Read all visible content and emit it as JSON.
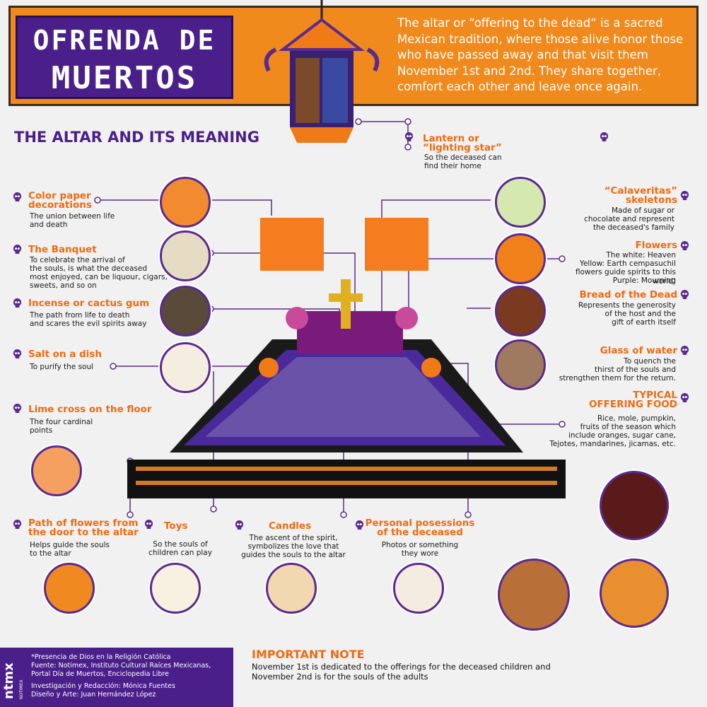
{
  "header": {
    "title_line1": "OFRENDA DE",
    "title_line2": "MUERTOS",
    "intro": "The altar or “offering to the dead“ is a sacred Mexican tradition, where those alive honor those who have passed away and that visit them November 1st and 2nd. They share together, comfort each other and leave once again."
  },
  "section_title": "THE ALTAR AND ITS MEANING",
  "items": {
    "lantern": {
      "title": "Lantern or “lighting star”",
      "title_line1": "Lantern or",
      "title_line2": "“lighting star”",
      "desc_line1": "So the deceased can",
      "desc_line2": "find their home"
    },
    "paper": {
      "title_line1": "Color paper",
      "title_line2": "decorations",
      "desc_line1": "The union between life",
      "desc_line2": "and death"
    },
    "banquet": {
      "title": "The Banquet",
      "desc_line1": "To celebrate the arrival of",
      "desc_line2": "the souls, is what the deceased",
      "desc_line3": "most enjoyed, can be liquour, cigars,",
      "desc_line4": "sweets, and so on"
    },
    "incense": {
      "title": "Incense or cactus gum",
      "desc_line1": "The path from life to death",
      "desc_line2": "and scares the evil spirits away"
    },
    "salt": {
      "title": "Salt on a dish",
      "desc": "To purify the soul"
    },
    "lime": {
      "title": "Lime cross on the floor",
      "desc_line1": "The four cardinal",
      "desc_line2": "points"
    },
    "path": {
      "title_line1": "Path of flowers from",
      "title_line2": "the door to the altar",
      "desc_line1": "Helps guide the souls",
      "desc_line2": "to the altar"
    },
    "toys": {
      "title": "Toys",
      "desc_line1": "So the souls of",
      "desc_line2": "children can play"
    },
    "candles": {
      "title": "Candles",
      "desc_line1": "The ascent of the spirit,",
      "desc_line2": "symbolizes the love that",
      "desc_line3": "guides the souls to the altar"
    },
    "possessions": {
      "title_line1": "Personal posessions",
      "title_line2": "of the deceased",
      "desc_line1": "Photos or something",
      "desc_line2": "they wore"
    },
    "calaveritas": {
      "title_line1": "“Calaveritas”",
      "title_line2": "skeletons",
      "desc_line1": "Made of sugar or",
      "desc_line2": "chocolate and represent",
      "desc_line3": "the deceased's family"
    },
    "flowers": {
      "title": "Flowers",
      "desc_line1": "The white: Heaven",
      "desc_line2": "Yellow: Earth cempasuchil",
      "desc_line3": "flowers guide spirits to this world)",
      "desc_line4": "Purple: Mourning"
    },
    "bread": {
      "title": "Bread of the Dead",
      "desc_line1": "Represents the generosity",
      "desc_line2": "of the host and the",
      "desc_line3": "gift of earth itself"
    },
    "water": {
      "title": "Glass of water",
      "desc_line1": "To quench the",
      "desc_line2": "thirst of the souls and",
      "desc_line3": "strengthen them for the return."
    },
    "food": {
      "title_line1": "TYPICAL",
      "title_line2": "OFFERING FOOD",
      "desc_line1": "Rice, mole, pumpkin,",
      "desc_line2": "fruits of the season which",
      "desc_line3": "include oranges, sugar cane,",
      "desc_line4": "Tejotes, mandarines, jicamas, etc."
    }
  },
  "note": {
    "title": "IMPORTANT NOTE",
    "line1": "November 1st is dedicated to the offerings for the deceased children and",
    "line2": "November 2nd is for the souls of the adults"
  },
  "credits": {
    "logo": "ntmx",
    "logo_sub": "NOTIMEX",
    "line1": "*Presencia de Dios en la Religión Católica",
    "line2": "Fuente: Notimex, Instituto Cultural Raíces Mexicanas,",
    "line3": "Portal Día de Muertos, Enciclopedia Libre",
    "line4": "Investigación y Redacción: Mónica Fuentes",
    "line5": "Diseño y Arte: Juan Hernández López"
  },
  "colors": {
    "orange": "#f08a1c",
    "purple": "#4a1f8a",
    "accent": "#f06a10"
  }
}
